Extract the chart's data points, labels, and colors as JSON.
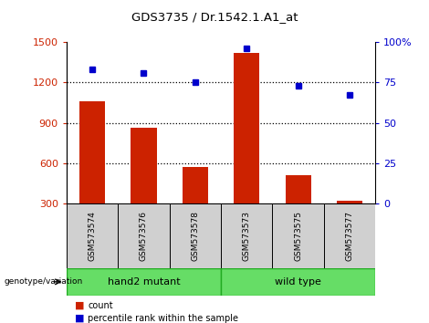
{
  "title": "GDS3735 / Dr.1542.1.A1_at",
  "samples": [
    "GSM573574",
    "GSM573576",
    "GSM573578",
    "GSM573573",
    "GSM573575",
    "GSM573577"
  ],
  "counts": [
    1060,
    860,
    570,
    1420,
    510,
    320
  ],
  "percentiles": [
    83,
    81,
    75,
    96,
    73,
    67
  ],
  "group_labels": [
    "hand2 mutant",
    "wild type"
  ],
  "group_split": 3,
  "bar_color": "#cc2200",
  "dot_color": "#0000cc",
  "ylim_left": [
    300,
    1500
  ],
  "ylim_right": [
    0,
    100
  ],
  "yticks_left": [
    300,
    600,
    900,
    1200,
    1500
  ],
  "yticks_right": [
    0,
    25,
    50,
    75,
    100
  ],
  "ytick_right_labels": [
    "0",
    "25",
    "50",
    "75",
    "100%"
  ],
  "grid_lines": [
    600,
    900,
    1200
  ],
  "left_tick_color": "#cc2200",
  "right_tick_color": "#0000cc",
  "gray_box_color": "#d0d0d0",
  "green_color": "#66dd66",
  "green_edge_color": "#22aa22",
  "label_count": "count",
  "label_percentile": "percentile rank within the sample"
}
